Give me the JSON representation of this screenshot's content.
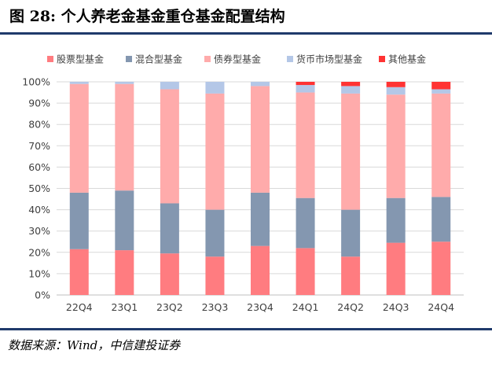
{
  "figure": {
    "title": "图 28: 个人养老金基金重仓基金配置结构",
    "source": "数据来源：Wind，中信建投证券"
  },
  "chart_data": {
    "type": "bar",
    "stacked": true,
    "categories": [
      "22Q4",
      "23Q1",
      "23Q2",
      "23Q3",
      "23Q4",
      "24Q1",
      "24Q2",
      "24Q3",
      "24Q4"
    ],
    "series": [
      {
        "name": "股票型基金",
        "color": "#ff7c80",
        "values": [
          21.5,
          21,
          19.5,
          18,
          23,
          22,
          18,
          24.5,
          25
        ]
      },
      {
        "name": "混合型基金",
        "color": "#8497b0",
        "values": [
          26.5,
          28,
          23.5,
          22,
          25,
          23.5,
          22,
          21,
          21
        ]
      },
      {
        "name": "债券型基金",
        "color": "#ffabab",
        "values": [
          51,
          50,
          53.5,
          54.5,
          50,
          49.5,
          54.5,
          48.5,
          48.5
        ]
      },
      {
        "name": "货币市场型基金",
        "color": "#b4c7e7",
        "values": [
          1,
          1,
          3.5,
          5.5,
          2,
          3.5,
          3.5,
          3.5,
          2
        ]
      },
      {
        "name": "其他基金",
        "color": "#ff3333",
        "values": [
          0,
          0,
          0,
          0,
          0,
          1.5,
          2,
          2.5,
          3.5
        ]
      }
    ],
    "yaxis": {
      "min": 0,
      "max": 100,
      "step": 10,
      "ticks": [
        "0%",
        "10%",
        "20%",
        "30%",
        "40%",
        "50%",
        "60%",
        "70%",
        "80%",
        "90%",
        "100%"
      ]
    },
    "grid": true,
    "legend": "top"
  }
}
